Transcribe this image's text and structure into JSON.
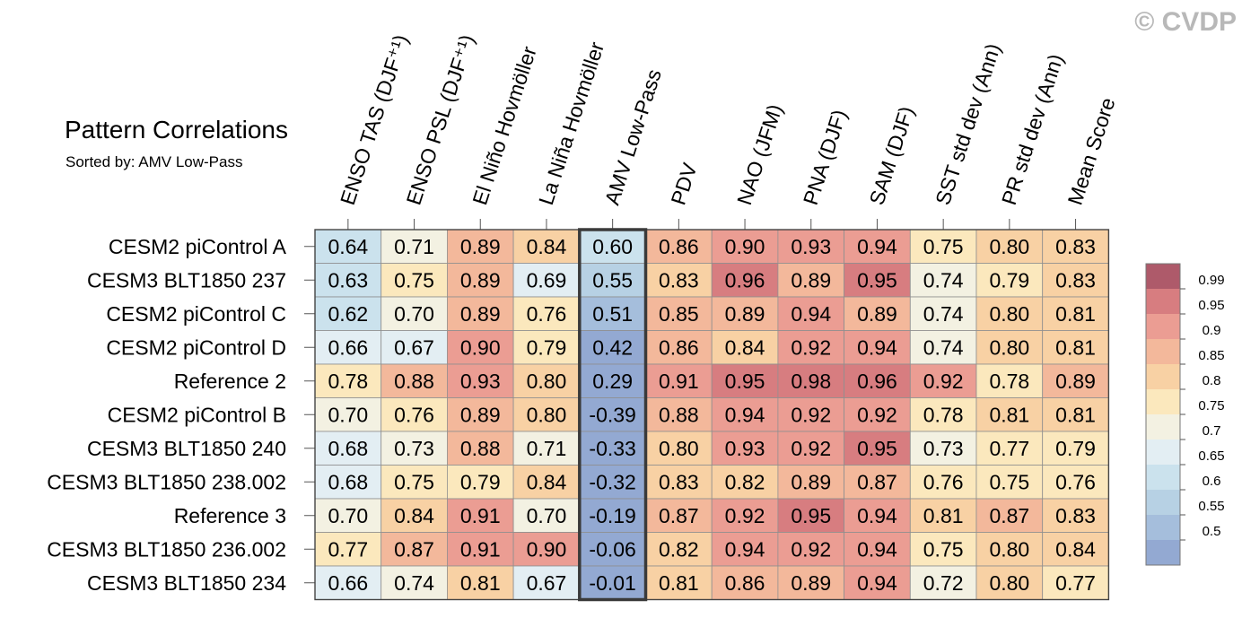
{
  "watermark": "© CVDP",
  "chart_data": {
    "type": "heatmap",
    "title": "Pattern Correlations",
    "subtitle": "Sorted by: AMV Low-Pass",
    "columns": [
      "ENSO TAS (DJF⁺¹)",
      "ENSO PSL (DJF⁺¹)",
      "El Niño Hovmöller",
      "La Niña Hovmöller",
      "AMV Low-Pass",
      "PDV",
      "NAO (JFM)",
      "PNA (DJF)",
      "SAM (DJF)",
      "SST std dev (Ann)",
      "PR std dev (Ann)",
      "Mean Score"
    ],
    "highlighted_column": "AMV Low-Pass",
    "rows": [
      "CESM2 piControl A",
      "CESM3 BLT1850 237",
      "CESM2 piControl C",
      "CESM2 piControl D",
      "Reference 2",
      "CESM2 piControl B",
      "CESM3 BLT1850 240",
      "CESM3 BLT1850 238.002",
      "Reference 3",
      "CESM3 BLT1850 236.002",
      "CESM3 BLT1850 234"
    ],
    "values": [
      [
        "0.64",
        "0.71",
        "0.89",
        "0.84",
        "0.60",
        "0.86",
        "0.90",
        "0.93",
        "0.94",
        "0.75",
        "0.80",
        "0.83"
      ],
      [
        "0.63",
        "0.75",
        "0.89",
        "0.69",
        "0.55",
        "0.83",
        "0.96",
        "0.89",
        "0.95",
        "0.74",
        "0.79",
        "0.83"
      ],
      [
        "0.62",
        "0.70",
        "0.89",
        "0.76",
        "0.51",
        "0.85",
        "0.89",
        "0.94",
        "0.89",
        "0.74",
        "0.80",
        "0.81"
      ],
      [
        "0.66",
        "0.67",
        "0.90",
        "0.79",
        "0.42",
        "0.86",
        "0.84",
        "0.92",
        "0.94",
        "0.74",
        "0.80",
        "0.81"
      ],
      [
        "0.78",
        "0.88",
        "0.93",
        "0.80",
        "0.29",
        "0.91",
        "0.95",
        "0.98",
        "0.96",
        "0.92",
        "0.78",
        "0.89"
      ],
      [
        "0.70",
        "0.76",
        "0.89",
        "0.80",
        "-0.39",
        "0.88",
        "0.94",
        "0.92",
        "0.92",
        "0.78",
        "0.81",
        "0.81"
      ],
      [
        "0.68",
        "0.73",
        "0.88",
        "0.71",
        "-0.33",
        "0.80",
        "0.93",
        "0.92",
        "0.95",
        "0.73",
        "0.77",
        "0.79"
      ],
      [
        "0.68",
        "0.75",
        "0.79",
        "0.84",
        "-0.32",
        "0.83",
        "0.82",
        "0.89",
        "0.87",
        "0.76",
        "0.75",
        "0.76"
      ],
      [
        "0.70",
        "0.84",
        "0.91",
        "0.70",
        "-0.19",
        "0.87",
        "0.92",
        "0.95",
        "0.94",
        "0.81",
        "0.87",
        "0.83"
      ],
      [
        "0.77",
        "0.87",
        "0.91",
        "0.90",
        "-0.06",
        "0.82",
        "0.94",
        "0.92",
        "0.94",
        "0.75",
        "0.80",
        "0.84"
      ],
      [
        "0.66",
        "0.74",
        "0.81",
        "0.67",
        "-0.01",
        "0.81",
        "0.86",
        "0.89",
        "0.94",
        "0.72",
        "0.80",
        "0.77"
      ]
    ],
    "colorbar": {
      "labels": [
        "0.99",
        "0.95",
        "0.9",
        "0.85",
        "0.8",
        "0.75",
        "0.7",
        "0.65",
        "0.6",
        "0.55",
        "0.5"
      ],
      "colors": [
        "#ae5a6a",
        "#d77d80",
        "#eb9d93",
        "#f3b89b",
        "#f8d1a4",
        "#fbe8bd",
        "#f3f1e2",
        "#e3eef3",
        "#cbe2ed",
        "#b7d1e4",
        "#a5bedc",
        "#93a9d2"
      ]
    }
  }
}
